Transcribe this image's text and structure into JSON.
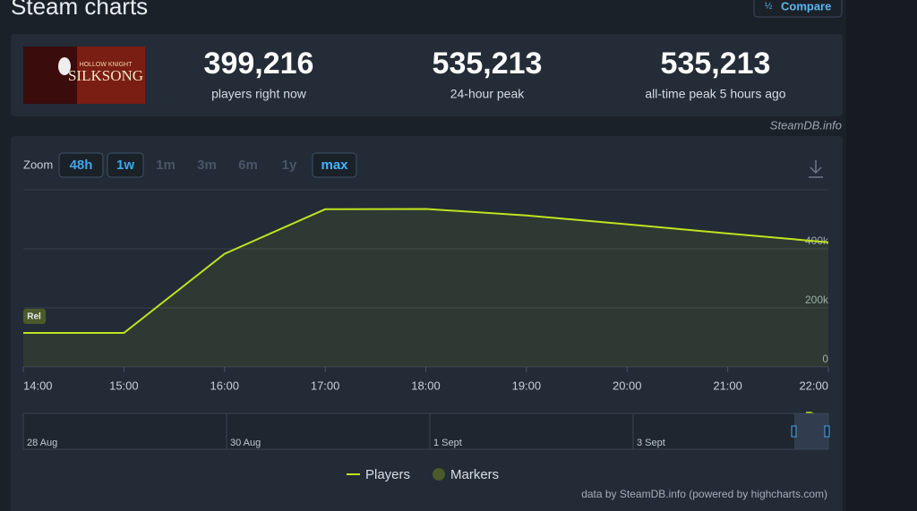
{
  "header": {
    "title": "Steam charts",
    "compare_button": "Compare"
  },
  "app": {
    "image_top": "HOLLOW KNIGHT",
    "image_name": "SILKSONG"
  },
  "stats": [
    {
      "value": "399,216",
      "label": "players right now"
    },
    {
      "value": "535,213",
      "label": "24-hour peak"
    },
    {
      "value": "535,213",
      "label": "all-time peak 5 hours ago"
    }
  ],
  "source": "SteamDB.info",
  "zoom": {
    "label": "Zoom",
    "options": [
      {
        "label": "48h",
        "state": "selected"
      },
      {
        "label": "1w",
        "state": "selected"
      },
      {
        "label": "1m",
        "state": "disabled"
      },
      {
        "label": "3m",
        "state": "disabled"
      },
      {
        "label": "6m",
        "state": "disabled"
      },
      {
        "label": "1y",
        "state": "disabled"
      },
      {
        "label": "max",
        "state": "active"
      }
    ]
  },
  "chart_data": {
    "type": "line",
    "categories": [
      "14:00",
      "15:00",
      "16:00",
      "17:00",
      "18:00",
      "19:00",
      "20:00",
      "21:00",
      "22:00"
    ],
    "series": [
      {
        "name": "Players",
        "color": "#bfe31f",
        "values": [
          115000,
          115000,
          383000,
          534000,
          535000,
          513000,
          483000,
          452000,
          422000
        ]
      }
    ],
    "markers": {
      "name": "Markers",
      "color": "#4b5a2a",
      "flags": [
        {
          "x": "14:00",
          "label": "Rel"
        }
      ]
    },
    "ylim": [
      0,
      600000
    ],
    "yticks": [
      0,
      {
        "value": 200000,
        "label": "200k"
      },
      {
        "value": 400000,
        "label": "400k"
      }
    ],
    "grid": true
  },
  "navigator": {
    "labels": [
      "28 Aug",
      "30 Aug",
      "1 Sept",
      "3 Sept"
    ]
  },
  "credits": "data by SteamDB.info (powered by highcharts.com)"
}
